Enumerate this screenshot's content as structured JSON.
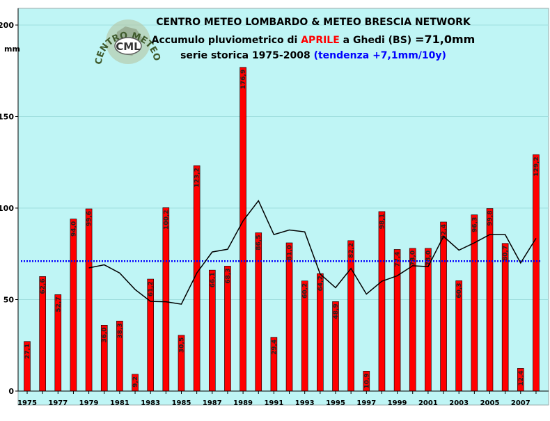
{
  "chart_data": {
    "type": "bar",
    "title_line1": "CENTRO METEO LOMBARDO & METEO BRESCIA NETWORK",
    "title_line2_prefix": "Accumulo pluviometrico di ",
    "title_line2_month": "APRILE",
    "title_line2_mid": " a Ghedi (BS) ",
    "title_line2_value": "=71,0mm",
    "title_line3_prefix": "serie storica 1975-2008 ",
    "title_line3_trend": "(tendenza +7,1mm/10y)",
    "ylabel": "mm",
    "ylim": [
      0,
      200
    ],
    "yticks": [
      "0",
      "50",
      "100",
      "150",
      "200"
    ],
    "x_tick_labels": [
      "1975",
      "1977",
      "1979",
      "1981",
      "1983",
      "1985",
      "1987",
      "1989",
      "1991",
      "1993",
      "1995",
      "1997",
      "1999",
      "2001",
      "2003",
      "2005",
      "2007"
    ],
    "years": [
      1975,
      1976,
      1977,
      1978,
      1979,
      1980,
      1981,
      1982,
      1983,
      1984,
      1985,
      1986,
      1987,
      1988,
      1989,
      1990,
      1991,
      1992,
      1993,
      1994,
      1995,
      1996,
      1997,
      1998,
      1999,
      2000,
      2001,
      2002,
      2003,
      2004,
      2005,
      2006,
      2007,
      2008
    ],
    "values": [
      27.1,
      62.6,
      52.7,
      94.0,
      99.6,
      36.0,
      38.3,
      9.2,
      61.2,
      100.2,
      30.5,
      123.2,
      66.1,
      68.3,
      176.9,
      86.5,
      29.4,
      81.0,
      60.2,
      64.2,
      48.9,
      82.2,
      10.9,
      98.1,
      77.4,
      78.0,
      78.0,
      92.4,
      60.3,
      96.3,
      99.8,
      80.7,
      12.4,
      129.2
    ],
    "data_labels": [
      "27,1",
      "62,6",
      "52,7",
      "94,0",
      "99,6",
      "36,0",
      "38,3",
      "9,2",
      "61,2",
      "100,2",
      "30,5",
      "123,2",
      "66,1",
      "68,3",
      "176,9",
      "86,5",
      "29,4",
      "81,0",
      "60,2",
      "64,2",
      "48,9",
      "82,2",
      "10,9",
      "98,1",
      "77,4",
      "78,0",
      "78,0",
      "92,4",
      "60,3",
      "96,3",
      "99,8",
      "80,7",
      "12,4",
      "129,2"
    ],
    "moving_average": {
      "years": [
        1979,
        1980,
        1981,
        1982,
        1983,
        1984,
        1985,
        1986,
        1987,
        1988,
        1989,
        1990,
        1991,
        1992,
        1993,
        1994,
        1995,
        1996,
        1997,
        1998,
        1999,
        2000,
        2001,
        2002,
        2003,
        2004,
        2005,
        2006,
        2007,
        2008
      ],
      "values": [
        67.3,
        69.0,
        64.5,
        55.5,
        49.0,
        48.8,
        47.5,
        64.5,
        76.0,
        77.5,
        93.0,
        104.0,
        85.5,
        88.0,
        87.0,
        64.0,
        56.5,
        67.0,
        53.0,
        60.0,
        63.0,
        68.5,
        68.0,
        84.5,
        77.0,
        81.0,
        85.5,
        85.5,
        70.0,
        83.5
      ]
    },
    "average_line": 71.0,
    "colors": {
      "bar": "#ff0000",
      "bar_edge": "#000000",
      "plot_bg": "#bff5f5",
      "average_line": "#0000ff",
      "moving_average": "#000000",
      "title_red": "#ff0000",
      "title_blue": "#0000ff"
    },
    "logo_text": "CENTRO METEO LOMBARDO",
    "logo_badge": "CML"
  }
}
